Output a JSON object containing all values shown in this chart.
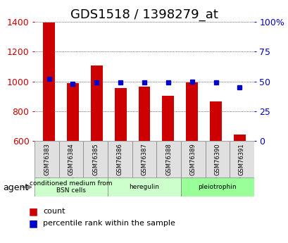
{
  "title": "GDS1518 / 1398279_at",
  "categories": [
    "GSM76383",
    "GSM76384",
    "GSM76385",
    "GSM76386",
    "GSM76387",
    "GSM76388",
    "GSM76389",
    "GSM76390",
    "GSM76391"
  ],
  "counts": [
    1395,
    988,
    1107,
    955,
    963,
    903,
    994,
    866,
    641
  ],
  "percentiles": [
    52,
    48,
    49,
    49,
    49,
    49,
    50,
    49,
    45
  ],
  "baseline": 600,
  "ylim_left": [
    600,
    1400
  ],
  "ylim_right": [
    0,
    100
  ],
  "yticks_left": [
    600,
    800,
    1000,
    1200,
    1400
  ],
  "yticks_right": [
    0,
    25,
    50,
    75,
    100
  ],
  "yticklabels_right": [
    "0",
    "25",
    "50",
    "75",
    "100%"
  ],
  "bar_color": "#cc0000",
  "dot_color": "#0000cc",
  "group_labels": [
    "conditioned medium from\nBSN cells",
    "heregulin",
    "pleiotrophin"
  ],
  "group_ranges": [
    [
      0,
      3
    ],
    [
      3,
      6
    ],
    [
      6,
      9
    ]
  ],
  "group_colors": [
    "#ccffcc",
    "#ccffcc",
    "#99ff99"
  ],
  "agent_label": "agent",
  "legend_count_label": "count",
  "legend_percentile_label": "percentile rank within the sample",
  "bar_width": 0.5,
  "background_color": "#ffffff",
  "plot_bg_color": "#ffffff",
  "tick_label_color_left": "#cc0000",
  "tick_label_color_right": "#0000cc",
  "title_fontsize": 13,
  "tick_fontsize": 9,
  "label_fontsize": 8
}
